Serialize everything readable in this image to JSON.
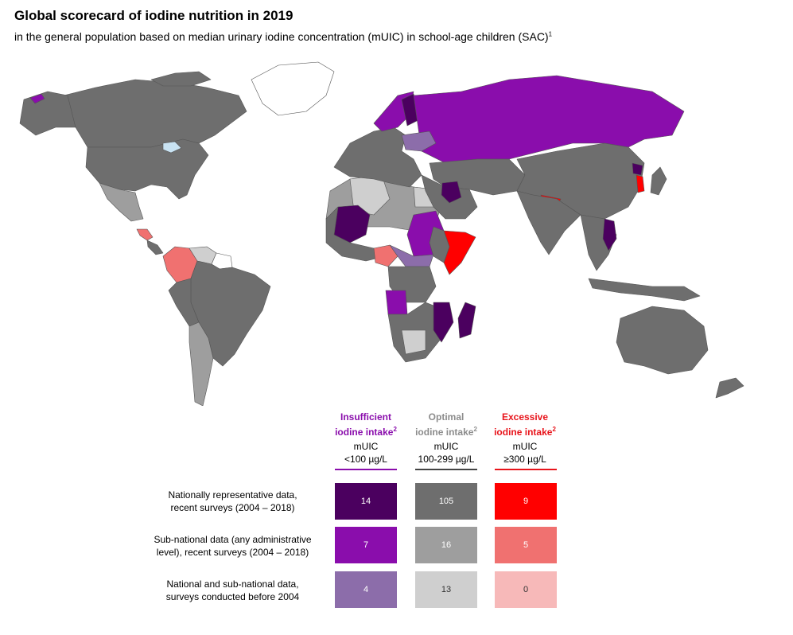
{
  "header": {
    "title": "Global scorecard of iodine nutrition in 2019",
    "subtitle": "in the general population based on median urinary iodine concentration (mUIC) in school-age children (SAC)",
    "subtitle_note": "1"
  },
  "legend": {
    "columns": [
      {
        "line1": "Insufficient",
        "line2": "iodine intake",
        "note": "2",
        "sub1": "mUIC",
        "sub2": "<100 µg/L",
        "color": "#8a0dac"
      },
      {
        "line1": "Optimal",
        "line2": "iodine intake",
        "note": "2",
        "sub1": "mUIC",
        "sub2": "100-299 µg/L",
        "color": "#8c8c8c"
      },
      {
        "line1": "Excessive",
        "line2": "iodine intake",
        "note": "2",
        "sub1": "mUIC",
        "sub2": "≥300 µg/L",
        "color": "#e8141b"
      }
    ],
    "rule_colors": [
      "#8a0dac",
      "#444444",
      "#e8141b"
    ],
    "rows": [
      {
        "line1": "Nationally representative data,",
        "line2": "recent surveys (2004 – 2018)",
        "counts": [
          "14",
          "105",
          "9"
        ],
        "colors": [
          "#4b005f",
          "#6e6e6e",
          "#ff0000"
        ],
        "text_colors": [
          "#ffffff",
          "#ffffff",
          "#ffffff"
        ]
      },
      {
        "line1": "Sub-national data (any administrative",
        "line2": "level), recent surveys (2004 – 2018)",
        "counts": [
          "7",
          "16",
          "5"
        ],
        "colors": [
          "#8a0dac",
          "#9e9e9e",
          "#f07170"
        ],
        "text_colors": [
          "#ffffff",
          "#ffffff",
          "#ffffff"
        ]
      },
      {
        "line1": "National and sub-national data,",
        "line2": "surveys conducted before 2004",
        "counts": [
          "4",
          "13",
          "0"
        ],
        "colors": [
          "#8c6daa",
          "#cfcfcf",
          "#f7b9b9"
        ],
        "text_colors": [
          "#ffffff",
          "#333333",
          "#333333"
        ]
      }
    ]
  },
  "map": {
    "colors": {
      "optimal_national": "#6e6e6e",
      "optimal_subnational": "#9e9e9e",
      "optimal_old": "#cfcfcf",
      "insufficient_national": "#4b005f",
      "insufficient_subnational": "#8a0dac",
      "insufficient_old": "#8c6daa",
      "excessive_national": "#ff0000",
      "excessive_subnational": "#f07170",
      "no_data": "#ffffff",
      "border": "#555555",
      "lakes": "#c9e3f3"
    }
  }
}
